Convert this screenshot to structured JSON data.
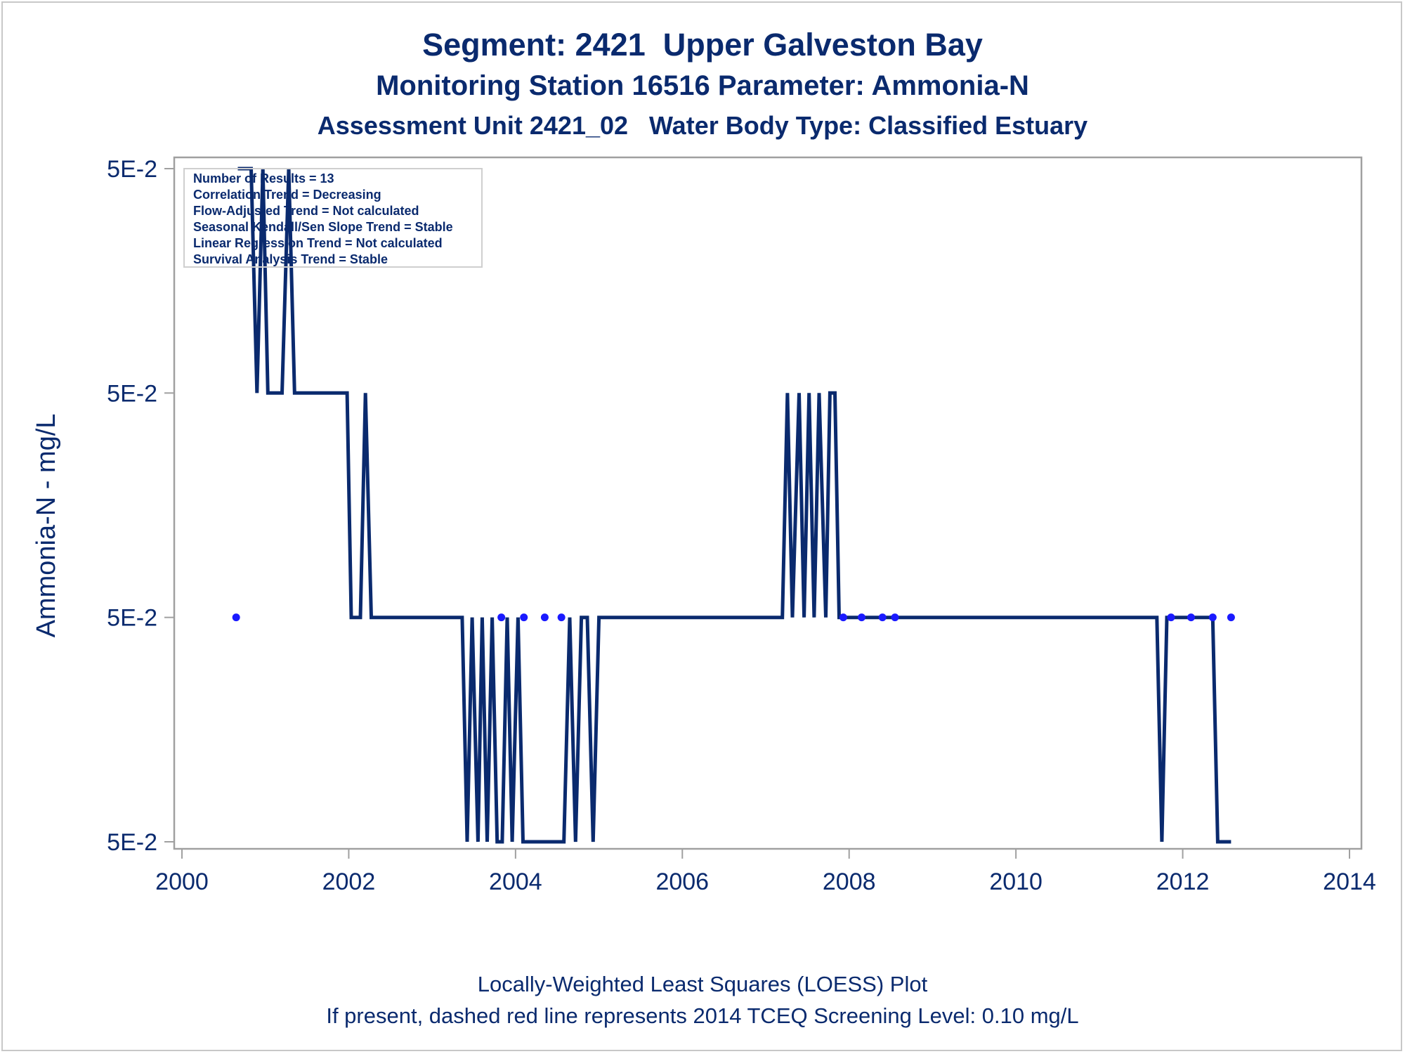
{
  "titles": {
    "line1": "Segment: 2421  Upper Galveston Bay",
    "line2": "Monitoring Station 16516 Parameter: Ammonia-N",
    "line3": "Assessment Unit 2421_02   Water Body Type: Classified Estuary"
  },
  "footnotes": {
    "line1": "Locally-Weighted Least Squares (LOESS) Plot",
    "line2": "If present, dashed red line represents 2014 TCEQ Screening Level: 0.10 mg/L"
  },
  "stats_box": [
    "Number of Results = 13",
    "Correlation Trend = Decreasing",
    "Flow-Adjusted Trend = Not calculated",
    "Seasonal Kendall/Sen Slope Trend = Stable",
    "Linear Regression Trend = Not calculated",
    "Survival Analysis Trend = Stable"
  ],
  "colors": {
    "line": "#0a2a6e",
    "points": "#1a1aff",
    "text": "#0a2a6e",
    "frame": "#a0a0a0"
  },
  "chart_data": {
    "type": "line",
    "title": "Segment: 2421  Upper Galveston Bay",
    "xlabel": "",
    "ylabel": "Ammonia-N - mg/L",
    "xlim": [
      2000,
      2014
    ],
    "ylim": [
      0,
      3
    ],
    "x_ticks": [
      2000,
      2002,
      2004,
      2006,
      2008,
      2010,
      2012,
      2014
    ],
    "x_tick_labels": [
      "2000",
      "2002",
      "2004",
      "2006",
      "2008",
      "2010",
      "2012",
      "2014"
    ],
    "y_ticks": [
      0,
      1,
      2,
      3
    ],
    "y_tick_labels": [
      "5E-2",
      "5E-2",
      "5E-2",
      "5E-2"
    ],
    "grid": false,
    "legend": "none",
    "series": [
      {
        "style": "line",
        "x": [
          2000.67,
          2000.83,
          2000.9,
          2000.97,
          2001.03,
          2001.2,
          2001.28,
          2001.35,
          2001.98,
          2002.03,
          2002.14,
          2002.2,
          2002.27,
          2003.36,
          2003.42,
          2003.48,
          2003.55,
          2003.6,
          2003.66,
          2003.72,
          2003.78,
          2003.84,
          2003.9,
          2003.96,
          2004.03,
          2004.09,
          2004.13,
          2004.58,
          2004.65,
          2004.72,
          2004.79,
          2004.86,
          2004.93,
          2005.0,
          2007.2,
          2007.26,
          2007.32,
          2007.4,
          2007.46,
          2007.52,
          2007.58,
          2007.64,
          2007.72,
          2007.77,
          2007.83,
          2007.88,
          2007.92,
          2011.69,
          2011.75,
          2011.81,
          2012.36,
          2012.42,
          2012.58
        ],
        "y": [
          3,
          3,
          2,
          3,
          2,
          2,
          3,
          2,
          2,
          1,
          1,
          2,
          1,
          1,
          0,
          1,
          0,
          1,
          0,
          1,
          0,
          0,
          1,
          0,
          1,
          0,
          0,
          0,
          1,
          0,
          1,
          1,
          0,
          1,
          1,
          2,
          1,
          2,
          1,
          2,
          1,
          2,
          1,
          2,
          2,
          1,
          1,
          1,
          0,
          1,
          1,
          0,
          0
        ]
      },
      {
        "style": "points",
        "x": [
          2000.65,
          2003.83,
          2004.1,
          2004.35,
          2004.55,
          2007.93,
          2008.15,
          2008.4,
          2008.55,
          2011.86,
          2012.1,
          2012.36,
          2012.58
        ],
        "y": [
          1,
          1,
          1,
          1,
          1,
          1,
          1,
          1,
          1,
          1,
          1,
          1,
          1
        ]
      }
    ]
  }
}
